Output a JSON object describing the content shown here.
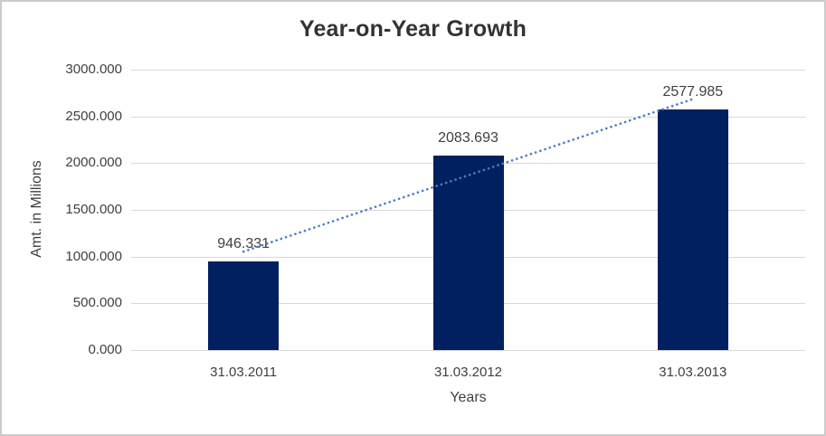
{
  "chart_data": {
    "type": "bar",
    "title": "Year-on-Year Growth",
    "categories": [
      "31.03.2011",
      "31.03.2012",
      "31.03.2013"
    ],
    "values": [
      946.331,
      2083.693,
      2577.985
    ],
    "data_labels": [
      "946.331",
      "2083.693",
      "2577.985"
    ],
    "xlabel": "Years",
    "ylabel": "Amt. in Millions",
    "ylim": [
      0,
      3000
    ],
    "ytick_step": 500,
    "ytick_labels": [
      "0.000",
      "500.000",
      "1000.000",
      "1500.000",
      "2000.000",
      "2500.000",
      "3000.000"
    ],
    "grid": true,
    "legend": "none",
    "trendline": {
      "type": "linear",
      "style": "dotted"
    },
    "colors": {
      "bar": "#002060",
      "trendline": "#4a7cc4",
      "gridline": "#d9d9d9",
      "text": "#404040",
      "title": "#333333",
      "border": "#cbcbcb",
      "background": "#ffffff"
    }
  }
}
